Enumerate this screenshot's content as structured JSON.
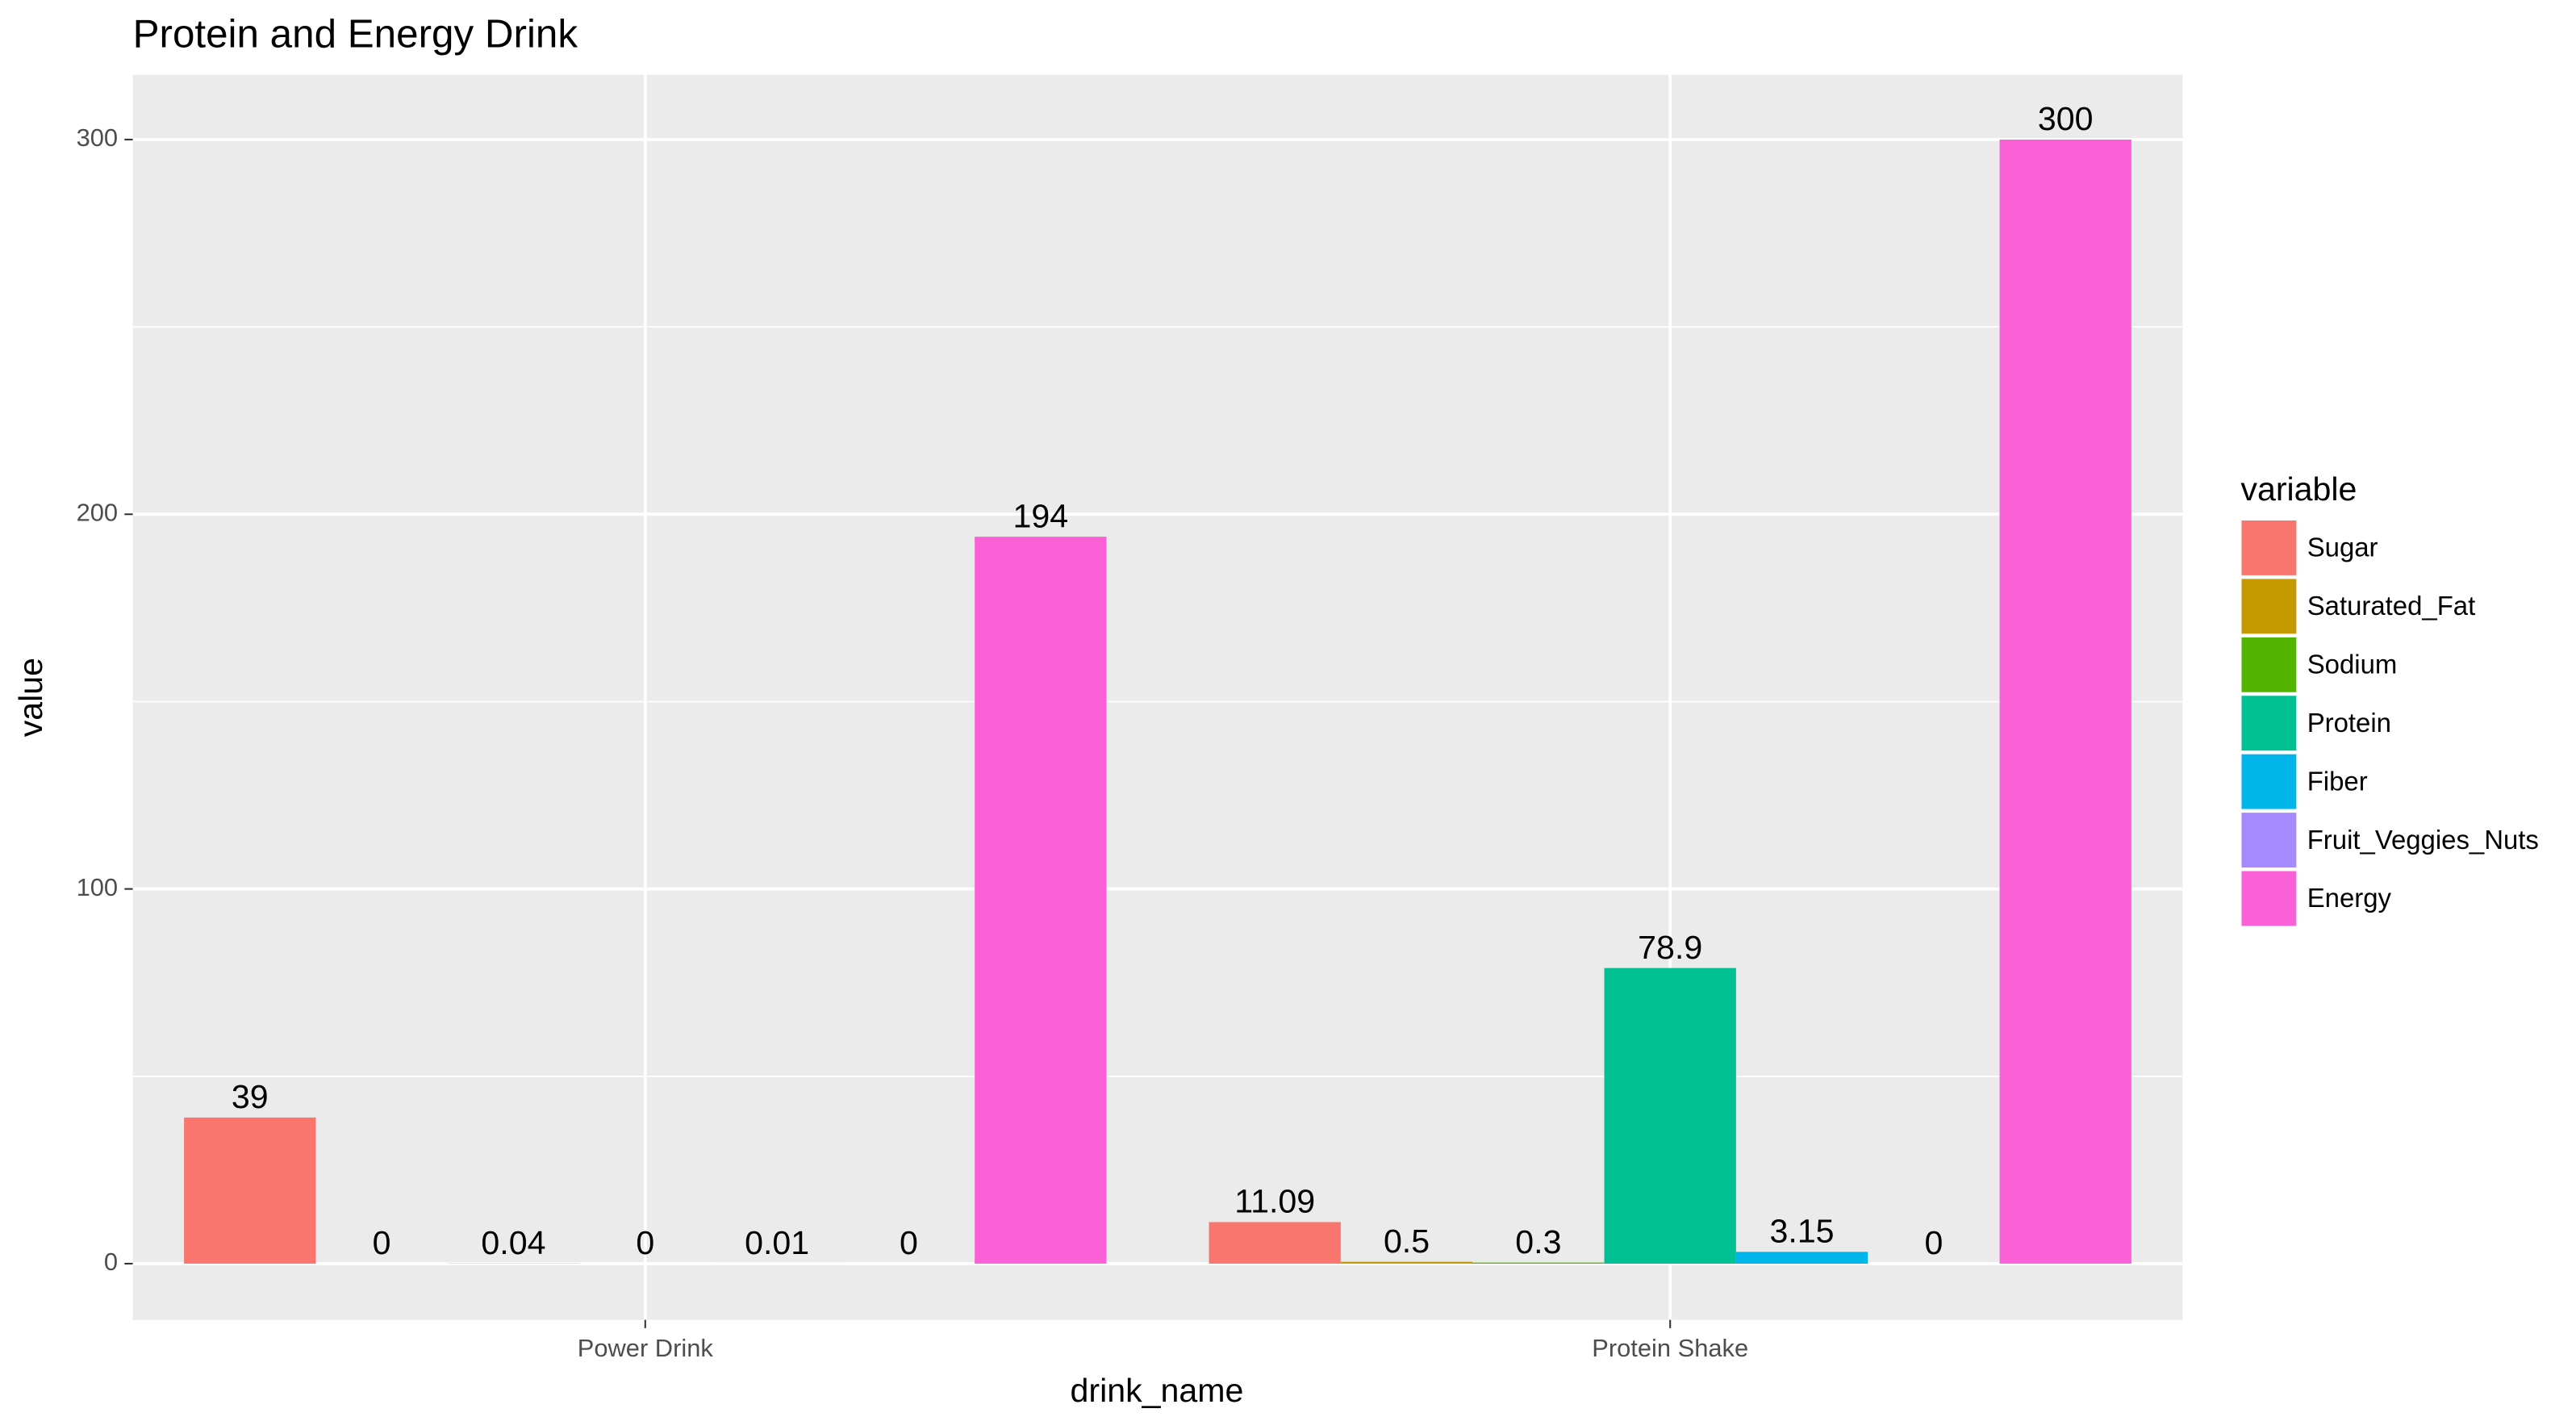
{
  "chart_data": {
    "type": "bar",
    "title": "Protein and Energy Drink",
    "x_label": "drink_name",
    "y_label": "value",
    "legend_title": "variable",
    "categories": [
      "Power Drink",
      "Protein Shake"
    ],
    "series": [
      {
        "name": "Sugar",
        "color": "#f8766d",
        "values": [
          39,
          11.09
        ]
      },
      {
        "name": "Saturated_Fat",
        "color": "#c49a00",
        "values": [
          0,
          0.5
        ]
      },
      {
        "name": "Sodium",
        "color": "#53b400",
        "values": [
          0.04,
          0.3
        ]
      },
      {
        "name": "Protein",
        "color": "#00c094",
        "values": [
          0,
          78.9
        ]
      },
      {
        "name": "Fiber",
        "color": "#00b6eb",
        "values": [
          0.01,
          3.15
        ]
      },
      {
        "name": "Fruit_Veggies_Nuts",
        "color": "#a58aff",
        "values": [
          0,
          0
        ]
      },
      {
        "name": "Energy",
        "color": "#fb61d7",
        "values": [
          194,
          300
        ]
      }
    ],
    "ylim": [
      -15,
      317.3
    ],
    "yticks": [
      0,
      100,
      200,
      300
    ],
    "grid": true,
    "legend": "right"
  }
}
